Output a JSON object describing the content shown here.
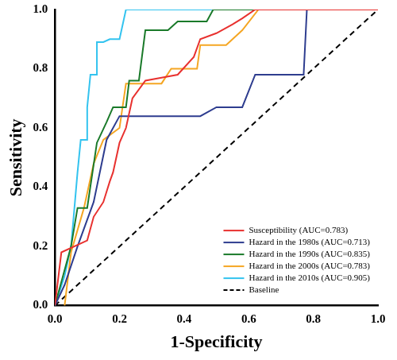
{
  "chart_data": {
    "type": "line",
    "xlabel": "1-Specificity",
    "ylabel": "Sensitivity",
    "xlim": [
      0,
      1
    ],
    "ylim": [
      0,
      1
    ],
    "xticks": [
      {
        "value": 0,
        "label": "0.0"
      },
      0.2,
      0.4,
      0.6,
      0.8,
      {
        "value": 1,
        "label": "1.0"
      }
    ],
    "yticks": [
      {
        "value": 0,
        "label": "0.0"
      },
      0.2,
      0.4,
      0.6,
      0.8,
      {
        "value": 1,
        "label": "1.0"
      }
    ],
    "grid": false,
    "legend": "lower right",
    "series": [
      {
        "name": "Susceptibility (AUC=0.783)",
        "color": "#e8312f",
        "line_style": "solid",
        "x": [
          0,
          0.02,
          0.1,
          0.12,
          0.15,
          0.17,
          0.18,
          0.2,
          0.22,
          0.24,
          0.28,
          0.33,
          0.38,
          0.43,
          0.45,
          0.5,
          0.55,
          0.58,
          0.62,
          1
        ],
        "values": [
          0,
          0.18,
          0.22,
          0.3,
          0.35,
          0.42,
          0.45,
          0.55,
          0.6,
          0.7,
          0.76,
          0.77,
          0.78,
          0.84,
          0.9,
          0.92,
          0.95,
          0.97,
          1,
          1
        ]
      },
      {
        "name": "Hazard in the 1980s (AUC=0.713)",
        "color": "#2e3d8f",
        "line_style": "solid",
        "x": [
          0,
          0.03,
          0.07,
          0.12,
          0.16,
          0.2,
          0.45,
          0.5,
          0.58,
          0.62,
          0.77,
          0.78,
          1
        ],
        "values": [
          0,
          0.07,
          0.2,
          0.35,
          0.56,
          0.64,
          0.64,
          0.67,
          0.67,
          0.78,
          0.78,
          1,
          1
        ]
      },
      {
        "name": "Hazard in the 1990s (AUC=0.835)",
        "color": "#1a7a2a",
        "line_style": "solid",
        "x": [
          0,
          0.05,
          0.07,
          0.1,
          0.13,
          0.16,
          0.18,
          0.22,
          0.23,
          0.26,
          0.28,
          0.35,
          0.38,
          0.47,
          0.49,
          1
        ],
        "values": [
          0,
          0.2,
          0.33,
          0.33,
          0.55,
          0.62,
          0.67,
          0.67,
          0.76,
          0.76,
          0.93,
          0.93,
          0.96,
          0.96,
          1,
          1
        ]
      },
      {
        "name": "Hazard in the 2000s (AUC=0.783)",
        "color": "#f5a623",
        "line_style": "solid",
        "x": [
          0.03,
          0.05,
          0.09,
          0.12,
          0.15,
          0.2,
          0.22,
          0.33,
          0.36,
          0.44,
          0.45,
          0.53,
          0.58,
          0.63,
          1
        ],
        "values": [
          0,
          0.18,
          0.33,
          0.48,
          0.56,
          0.6,
          0.75,
          0.75,
          0.8,
          0.8,
          0.88,
          0.88,
          0.93,
          1,
          1
        ]
      },
      {
        "name": "Hazard in the 2010s (AUC=0.905)",
        "color": "#33c3ef",
        "line_style": "solid",
        "x": [
          0,
          0.03,
          0.05,
          0.07,
          0.08,
          0.1,
          0.1,
          0.11,
          0.13,
          0.13,
          0.15,
          0.17,
          0.2,
          0.22,
          1
        ],
        "values": [
          0,
          0.1,
          0.2,
          0.45,
          0.56,
          0.56,
          0.67,
          0.78,
          0.78,
          0.89,
          0.89,
          0.9,
          0.9,
          1,
          1
        ]
      },
      {
        "name": "Baseline",
        "color": "#000000",
        "line_style": "dashed",
        "x": [
          0,
          1
        ],
        "values": [
          0,
          1
        ]
      }
    ]
  }
}
